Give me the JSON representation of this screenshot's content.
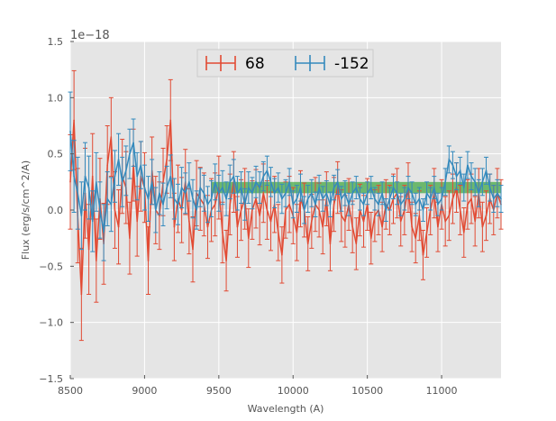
{
  "chart_data": {
    "type": "line",
    "title": "",
    "xlabel": "Wavelength (A)",
    "ylabel": "Flux (erg/s/cm^2/A)",
    "offset_text": "1e−18",
    "xlim": [
      8500,
      11400
    ],
    "ylim": [
      -1.5,
      1.5
    ],
    "xticks": [
      8500,
      9000,
      9500,
      10000,
      10500,
      11000
    ],
    "yticks": [
      -1.5,
      -1.0,
      -0.5,
      0.0,
      0.5,
      1.0,
      1.5
    ],
    "xtick_labels": [
      "8500",
      "9000",
      "9500",
      "10000",
      "10500",
      "11000"
    ],
    "ytick_labels": [
      "−1.5",
      "−1.0",
      "−0.5",
      "0.0",
      "0.5",
      "1.0",
      "1.5"
    ],
    "grid": true,
    "legend_position": "top-center",
    "band": {
      "x_start": 9450,
      "x_end": 11400,
      "y_low": 0.15,
      "y_high": 0.25,
      "color": "#2ca02c"
    },
    "x": [
      8500,
      8525,
      8550,
      8575,
      8600,
      8625,
      8650,
      8675,
      8700,
      8725,
      8750,
      8775,
      8800,
      8825,
      8850,
      8875,
      8900,
      8925,
      8950,
      8975,
      9000,
      9025,
      9050,
      9075,
      9100,
      9125,
      9150,
      9175,
      9200,
      9225,
      9250,
      9275,
      9300,
      9325,
      9350,
      9375,
      9400,
      9425,
      9450,
      9475,
      9500,
      9525,
      9550,
      9575,
      9600,
      9625,
      9650,
      9675,
      9700,
      9725,
      9750,
      9775,
      9800,
      9825,
      9850,
      9875,
      9900,
      9925,
      9950,
      9975,
      10000,
      10025,
      10050,
      10075,
      10100,
      10125,
      10150,
      10175,
      10200,
      10225,
      10250,
      10275,
      10300,
      10325,
      10350,
      10375,
      10400,
      10425,
      10450,
      10475,
      10500,
      10525,
      10550,
      10575,
      10600,
      10625,
      10650,
      10675,
      10700,
      10725,
      10750,
      10775,
      10800,
      10825,
      10850,
      10875,
      10900,
      10925,
      10950,
      10975,
      11000,
      11025,
      11050,
      11075,
      11100,
      11125,
      11150,
      11175,
      11200,
      11225,
      11250,
      11275,
      11300,
      11325,
      11350,
      11375,
      11400
    ],
    "series": [
      {
        "name": "68",
        "color": "#e24a33",
        "values": [
          0.25,
          0.8,
          -0.05,
          -0.75,
          0.15,
          -0.35,
          0.3,
          -0.45,
          0.1,
          -0.3,
          0.4,
          0.65,
          0.0,
          -0.15,
          0.3,
          0.2,
          -0.25,
          0.4,
          -0.1,
          0.3,
          0.2,
          -0.45,
          0.35,
          0.0,
          -0.05,
          0.25,
          0.45,
          0.8,
          -0.15,
          0.1,
          0.0,
          0.25,
          -0.1,
          -0.35,
          0.15,
          0.1,
          0.05,
          -0.15,
          0.0,
          0.05,
          0.2,
          -0.2,
          -0.45,
          0.05,
          0.25,
          -0.15,
          0.0,
          0.1,
          -0.25,
          0.0,
          0.1,
          -0.05,
          0.15,
          0.0,
          -0.1,
          0.05,
          -0.2,
          -0.4,
          0.0,
          0.05,
          -0.05,
          -0.2,
          0.1,
          0.0,
          -0.3,
          -0.1,
          0.05,
          0.0,
          -0.15,
          0.1,
          -0.3,
          0.05,
          0.2,
          -0.05,
          -0.1,
          0.05,
          -0.15,
          -0.3,
          0.0,
          -0.1,
          0.05,
          -0.25,
          -0.05,
          0.0,
          -0.15,
          0.05,
          0.0,
          0.1,
          0.15,
          -0.1,
          0.0,
          0.2,
          -0.15,
          -0.25,
          -0.05,
          -0.4,
          -0.2,
          0.0,
          0.15,
          -0.15,
          0.05,
          -0.1,
          -0.05,
          0.1,
          0.2,
          0.0,
          -0.2,
          0.05,
          0.1,
          -0.1,
          0.15,
          -0.15,
          -0.05,
          0.1,
          0.0,
          0.15,
          0.05
        ],
        "errors": [
          0.42,
          0.44,
          0.42,
          0.41,
          0.4,
          0.4,
          0.38,
          0.37,
          0.36,
          0.36,
          0.35,
          0.35,
          0.34,
          0.33,
          0.33,
          0.32,
          0.32,
          0.32,
          0.31,
          0.31,
          0.31,
          0.3,
          0.3,
          0.3,
          0.3,
          0.3,
          0.3,
          0.36,
          0.3,
          0.3,
          0.29,
          0.29,
          0.29,
          0.29,
          0.29,
          0.28,
          0.28,
          0.28,
          0.28,
          0.28,
          0.28,
          0.27,
          0.27,
          0.27,
          0.27,
          0.27,
          0.27,
          0.27,
          0.26,
          0.26,
          0.26,
          0.26,
          0.26,
          0.26,
          0.26,
          0.25,
          0.25,
          0.25,
          0.25,
          0.25,
          0.25,
          0.25,
          0.25,
          0.24,
          0.24,
          0.24,
          0.24,
          0.24,
          0.24,
          0.24,
          0.24,
          0.24,
          0.23,
          0.23,
          0.23,
          0.23,
          0.23,
          0.23,
          0.23,
          0.23,
          0.23,
          0.23,
          0.23,
          0.22,
          0.22,
          0.22,
          0.22,
          0.22,
          0.22,
          0.22,
          0.22,
          0.22,
          0.22,
          0.22,
          0.22,
          0.22,
          0.22,
          0.22,
          0.22,
          0.22,
          0.22,
          0.22,
          0.22,
          0.22,
          0.22,
          0.22,
          0.22,
          0.22,
          0.22,
          0.22,
          0.22,
          0.22,
          0.22,
          0.22,
          0.22,
          0.22,
          0.22
        ]
      },
      {
        "name": "-152",
        "color": "#348abd",
        "values": [
          0.7,
          0.3,
          0.15,
          -0.05,
          0.3,
          0.2,
          -0.1,
          0.25,
          0.0,
          -0.2,
          0.1,
          0.05,
          0.3,
          0.45,
          0.25,
          0.35,
          0.5,
          0.6,
          0.3,
          0.4,
          0.2,
          0.1,
          0.25,
          0.0,
          0.15,
          0.05,
          0.2,
          0.3,
          0.1,
          0.05,
          0.2,
          0.15,
          0.25,
          0.1,
          0.0,
          0.2,
          0.15,
          0.05,
          0.1,
          0.25,
          0.15,
          0.2,
          0.1,
          0.25,
          0.3,
          0.15,
          0.2,
          0.05,
          0.2,
          0.15,
          0.25,
          0.2,
          0.3,
          0.35,
          0.25,
          0.15,
          0.2,
          0.1,
          0.15,
          0.25,
          0.05,
          0.1,
          0.2,
          0.0,
          0.1,
          0.15,
          0.05,
          0.2,
          0.1,
          0.15,
          0.05,
          0.2,
          0.25,
          0.1,
          0.15,
          0.05,
          0.15,
          0.2,
          0.1,
          0.05,
          0.15,
          0.2,
          0.1,
          0.05,
          0.15,
          0.0,
          0.1,
          0.2,
          0.15,
          0.05,
          0.1,
          0.2,
          0.15,
          0.05,
          0.1,
          0.0,
          0.15,
          0.1,
          0.2,
          0.05,
          0.1,
          0.25,
          0.45,
          0.4,
          0.3,
          0.35,
          0.2,
          0.4,
          0.3,
          0.25,
          0.15,
          0.25,
          0.35,
          0.2,
          0.1,
          0.15,
          0.1
        ],
        "errors": [
          0.35,
          0.32,
          0.32,
          0.3,
          0.3,
          0.28,
          0.27,
          0.26,
          0.25,
          0.25,
          0.24,
          0.24,
          0.23,
          0.23,
          0.22,
          0.22,
          0.22,
          0.21,
          0.21,
          0.21,
          0.2,
          0.2,
          0.2,
          0.2,
          0.19,
          0.19,
          0.19,
          0.19,
          0.18,
          0.18,
          0.18,
          0.18,
          0.17,
          0.17,
          0.17,
          0.17,
          0.16,
          0.16,
          0.16,
          0.16,
          0.16,
          0.15,
          0.15,
          0.15,
          0.15,
          0.15,
          0.14,
          0.14,
          0.14,
          0.14,
          0.14,
          0.14,
          0.13,
          0.13,
          0.13,
          0.13,
          0.13,
          0.13,
          0.12,
          0.12,
          0.12,
          0.12,
          0.12,
          0.12,
          0.12,
          0.12,
          0.11,
          0.11,
          0.11,
          0.11,
          0.11,
          0.11,
          0.11,
          0.11,
          0.11,
          0.1,
          0.1,
          0.1,
          0.1,
          0.1,
          0.1,
          0.1,
          0.1,
          0.1,
          0.1,
          0.1,
          0.1,
          0.1,
          0.1,
          0.1,
          0.1,
          0.1,
          0.1,
          0.1,
          0.1,
          0.1,
          0.1,
          0.1,
          0.1,
          0.1,
          0.1,
          0.12,
          0.12,
          0.12,
          0.12,
          0.12,
          0.12,
          0.12,
          0.12,
          0.12,
          0.12,
          0.12,
          0.12,
          0.12,
          0.12,
          0.12,
          0.12
        ]
      }
    ]
  }
}
